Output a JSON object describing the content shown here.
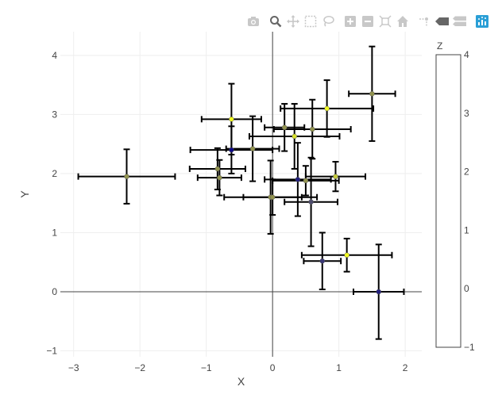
{
  "chart_data": {
    "type": "scatter",
    "title": "",
    "xlabel": "X",
    "ylabel": "Y",
    "xlim": [
      -3.2,
      2.25
    ],
    "ylim": [
      -1.1,
      4.4
    ],
    "x_ticks": [
      -3,
      -2,
      -1,
      0,
      1,
      2
    ],
    "y_ticks": [
      -1,
      0,
      1,
      2,
      3,
      4
    ],
    "grid": true,
    "colorbar": {
      "title": "Z",
      "range": [
        -1,
        4
      ],
      "ticks": [
        -1,
        0,
        1,
        2,
        3,
        4
      ],
      "colors": [
        "#0d0887",
        "#7a7a5a",
        "#f0f921"
      ]
    },
    "points": [
      {
        "x": -2.2,
        "y": 1.95,
        "ex": 0.73,
        "ey": 0.46,
        "z": 2.0
      },
      {
        "x": -0.62,
        "y": 2.92,
        "ex": 0.45,
        "ey": 0.6,
        "z": 4.0
      },
      {
        "x": -0.62,
        "y": 2.4,
        "ex": 0.62,
        "ey": 0.4,
        "z": -1.0
      },
      {
        "x": -0.83,
        "y": 2.08,
        "ex": 0.42,
        "ey": 0.35,
        "z": 2.0
      },
      {
        "x": -0.8,
        "y": 1.93,
        "ex": 0.33,
        "ey": 0.3,
        "z": 2.0
      },
      {
        "x": -0.3,
        "y": 2.42,
        "ex": 0.4,
        "ey": 0.55,
        "z": 2.0
      },
      {
        "x": 0.18,
        "y": 2.78,
        "ex": 0.3,
        "ey": 0.4,
        "z": 2.0
      },
      {
        "x": 0.33,
        "y": 2.63,
        "ex": 0.68,
        "ey": 0.55,
        "z": 3.5
      },
      {
        "x": 0.6,
        "y": 2.75,
        "ex": 0.58,
        "ey": 0.5,
        "z": 2.0
      },
      {
        "x": 0.82,
        "y": 3.1,
        "ex": 0.7,
        "ey": 0.48,
        "z": 4.0
      },
      {
        "x": 1.5,
        "y": 3.35,
        "ex": 0.35,
        "ey": 0.8,
        "z": 2.0
      },
      {
        "x": -0.03,
        "y": 1.6,
        "ex": 0.7,
        "ey": 0.62,
        "z": 2.0
      },
      {
        "x": 0.0,
        "y": 1.6,
        "ex": 0.44,
        "ey": 0.3,
        "z": 2.0
      },
      {
        "x": 0.38,
        "y": 1.9,
        "ex": 0.5,
        "ey": 0.62,
        "z": -0.5
      },
      {
        "x": 0.5,
        "y": 1.88,
        "ex": 0.5,
        "ey": 0.25,
        "z": 2.0
      },
      {
        "x": 0.58,
        "y": 1.52,
        "ex": 0.4,
        "ey": 0.75,
        "z": 0.5
      },
      {
        "x": 0.95,
        "y": 1.95,
        "ex": 0.45,
        "ey": 0.25,
        "z": 3.0
      },
      {
        "x": 1.12,
        "y": 0.62,
        "ex": 0.68,
        "ey": 0.28,
        "z": 4.0
      },
      {
        "x": 0.75,
        "y": 0.52,
        "ex": 0.28,
        "ey": 0.48,
        "z": 0.0
      },
      {
        "x": 1.6,
        "y": 0.0,
        "ex": 0.38,
        "ey": 0.8,
        "z": -0.5
      }
    ]
  },
  "modebar": {
    "icons": [
      "camera-icon",
      "zoom-icon",
      "pan-icon",
      "box-select-icon",
      "lasso-select-icon",
      "zoom-in-icon",
      "zoom-out-icon",
      "autoscale-icon",
      "reset-axes-icon",
      "spike-lines-icon",
      "hover-closest-icon",
      "hover-compare-icon",
      "plotly-logo-icon"
    ]
  }
}
